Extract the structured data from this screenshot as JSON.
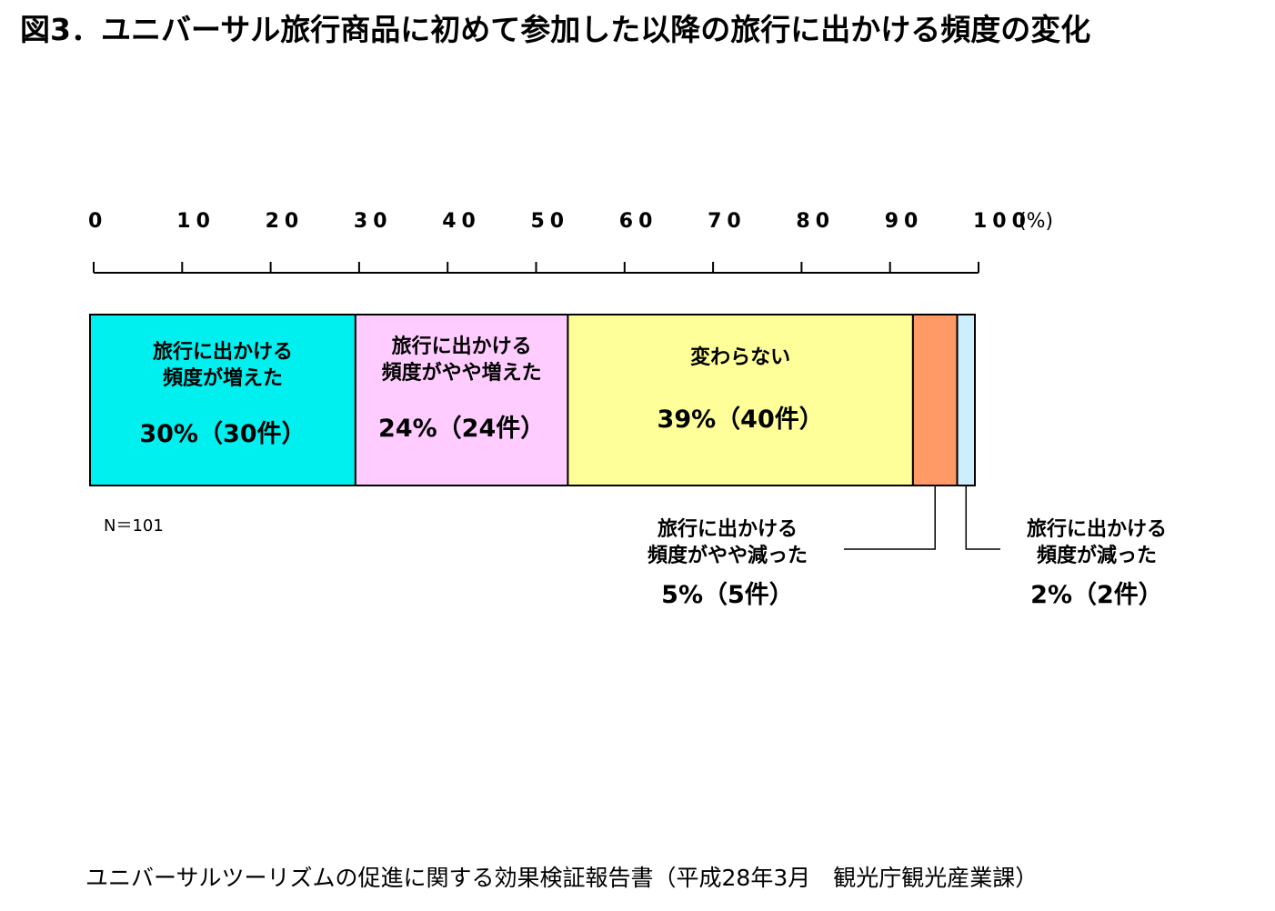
{
  "title": "図3．ユニバーサル旅行商品に初めて参加した以降の旅行に出かける頻度の変化",
  "n_label": "N＝101",
  "source": "ユニバーサルツーリズムの促進に関する効果検証報告書（平成28年3月　観光庁観光産業課）",
  "chart_data": {
    "type": "bar",
    "orientation": "horizontal-stacked-100",
    "xlim": [
      0,
      100
    ],
    "x_ticks": [
      "0",
      "10",
      "20",
      "30",
      "40",
      "50",
      "60",
      "70",
      "80",
      "90",
      "100"
    ],
    "x_unit": "(%)",
    "axis_position": "top",
    "grid": false,
    "segments": [
      {
        "label_lines": [
          "旅行に出かける",
          "頻度が増えた"
        ],
        "value": 30,
        "count_text": "30%（30件）",
        "color": "#00f0f0",
        "label_inside": true
      },
      {
        "label_lines": [
          "旅行に出かける",
          "頻度がやや増えた"
        ],
        "value": 24,
        "count_text": "24%（24件）",
        "color": "#ffccff",
        "label_inside": true
      },
      {
        "label_lines": [
          "変わらない"
        ],
        "value": 39,
        "count_text": "39%（40件）",
        "color": "#ffff99",
        "label_inside": true
      },
      {
        "label_lines": [
          "旅行に出かける",
          "頻度がやや減った"
        ],
        "value": 5,
        "count_text": "5%（5件）",
        "color": "#ff9966",
        "label_inside": false
      },
      {
        "label_lines": [
          "旅行に出かける",
          "頻度が減った"
        ],
        "value": 2,
        "count_text": "2%（2件）",
        "color": "#cceeff",
        "label_inside": false
      }
    ]
  }
}
